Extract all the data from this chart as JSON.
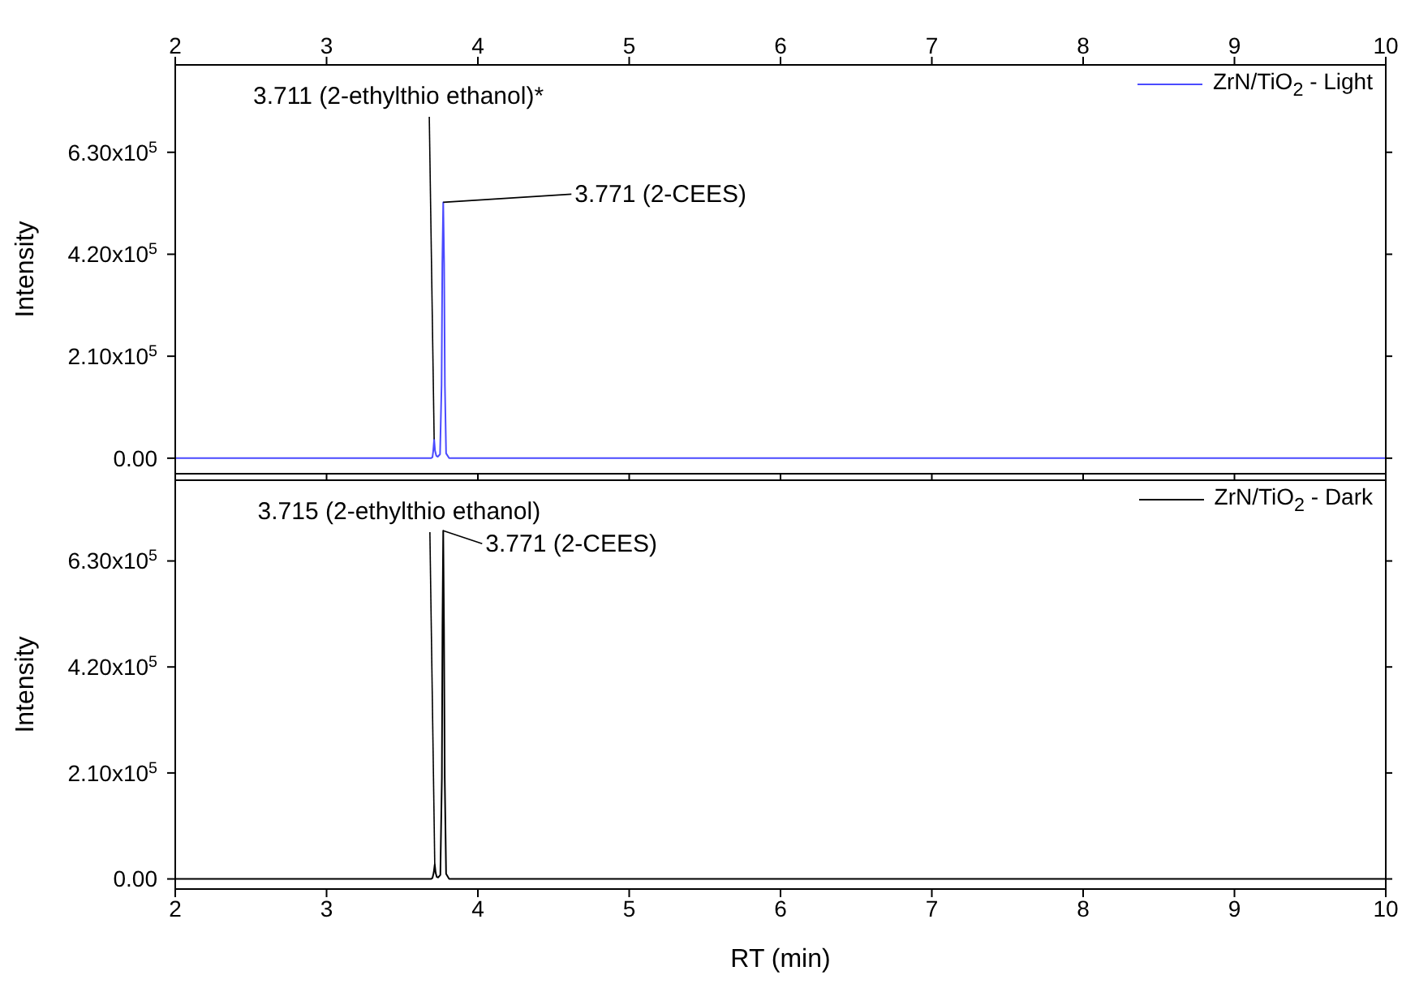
{
  "chart_data": [
    {
      "type": "line",
      "ylabel": "Intensity",
      "legend": "top right",
      "marker": "none",
      "line_style": "solid",
      "tick_labels": "y",
      "xlim": [
        2,
        10
      ],
      "xticks": [
        2,
        3,
        4,
        5,
        6,
        7,
        8,
        9,
        10
      ],
      "x2lim": [
        2,
        10
      ],
      "x2ticks": [
        2,
        3,
        4,
        5,
        6,
        7,
        8,
        9,
        10
      ],
      "ylim": [
        -32000,
        810000
      ],
      "yticks": [
        {
          "value": 0,
          "label": "0.00"
        },
        {
          "value": 210000,
          "label": "2.10x10$^{5}$"
        },
        {
          "value": 420000,
          "label": "4.20x10$^{5}$"
        },
        {
          "value": 630000,
          "label": "6.30x10$^{5}$"
        }
      ],
      "series": [
        {
          "name": "ZrN/TiO$_{2}$ - Light",
          "color": "#4a4aff",
          "x": [
            2,
            3.69,
            3.7,
            3.705,
            3.711,
            3.717,
            3.725,
            3.735,
            3.75,
            3.76,
            3.765,
            3.771,
            3.777,
            3.782,
            3.79,
            3.81,
            10
          ],
          "values": [
            0,
            0,
            2000,
            15000,
            39000,
            15000,
            5000,
            3000,
            8000,
            150000,
            400000,
            527000,
            400000,
            150000,
            10000,
            0,
            0
          ]
        }
      ],
      "annotations": [
        {
          "text": "3.711 (2-ethylthio ethanol)*",
          "x": 3.711,
          "y": 39000
        },
        {
          "text": "3.771 (2-CEES)",
          "x": 3.771,
          "y": 527000
        }
      ]
    },
    {
      "type": "line",
      "ylabel": "Intensity",
      "xlabel": "RT (min)",
      "legend": "top right",
      "marker": "none",
      "line_style": "solid",
      "xlim": [
        2,
        10
      ],
      "xticks": [
        2,
        3,
        4,
        5,
        6,
        7,
        8,
        9,
        10
      ],
      "ylim": [
        -20000,
        790000
      ],
      "yticks": [
        {
          "value": 0,
          "label": "0.00"
        },
        {
          "value": 210000,
          "label": "2.10x10$^{5}$"
        },
        {
          "value": 420000,
          "label": "4.20x10$^{5}$"
        },
        {
          "value": 630000,
          "label": "6.30x10$^{5}$"
        }
      ],
      "series": [
        {
          "name": "ZrN/TiO$_{2}$ - Dark",
          "color": "#000000",
          "x": [
            2,
            3.69,
            3.7,
            3.708,
            3.715,
            3.721,
            3.728,
            3.738,
            3.752,
            3.762,
            3.766,
            3.771,
            3.776,
            3.781,
            3.79,
            3.81,
            10
          ],
          "values": [
            0,
            0,
            2000,
            12000,
            29000,
            12000,
            4000,
            3000,
            8000,
            200000,
            500000,
            690000,
            500000,
            200000,
            10000,
            0,
            0
          ]
        }
      ],
      "annotations": [
        {
          "text": "3.715 (2-ethylthio ethanol)",
          "x": 3.715,
          "y": 29000
        },
        {
          "text": "3.771 (2-CEES)",
          "x": 3.771,
          "y": 690000
        }
      ]
    }
  ]
}
